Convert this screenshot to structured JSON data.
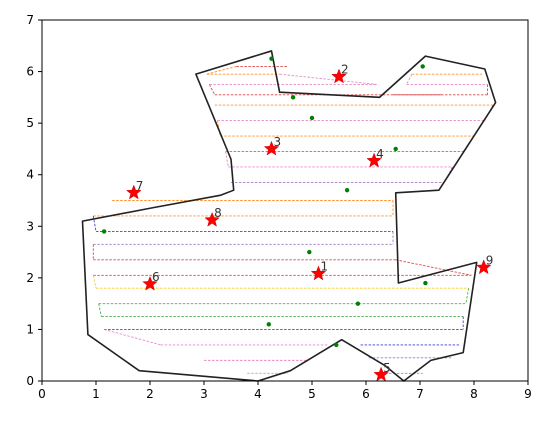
{
  "chart_data": {
    "type": "scatter",
    "title": "",
    "xlabel": "",
    "ylabel": "",
    "xlim": [
      0,
      9
    ],
    "ylim": [
      0,
      7
    ],
    "xticks": [
      "0",
      "1",
      "2",
      "3",
      "4",
      "5",
      "6",
      "7",
      "8",
      "9"
    ],
    "yticks": [
      "0",
      "1",
      "2",
      "3",
      "4",
      "5",
      "6",
      "7"
    ],
    "grid": false,
    "boundary": [
      [
        0.75,
        3.1
      ],
      [
        2.0,
        3.35
      ],
      [
        3.3,
        3.6
      ],
      [
        3.55,
        3.7
      ],
      [
        3.5,
        4.3
      ],
      [
        2.85,
        5.95
      ],
      [
        4.25,
        6.4
      ],
      [
        4.4,
        5.6
      ],
      [
        6.25,
        5.5
      ],
      [
        7.1,
        6.3
      ],
      [
        8.2,
        6.05
      ],
      [
        8.4,
        5.4
      ],
      [
        7.35,
        3.7
      ],
      [
        6.55,
        3.65
      ],
      [
        6.6,
        1.9
      ],
      [
        8.05,
        2.3
      ],
      [
        7.8,
        0.55
      ],
      [
        7.2,
        0.4
      ],
      [
        6.7,
        0.0
      ],
      [
        6.35,
        0.3
      ],
      [
        5.55,
        0.8
      ],
      [
        4.6,
        0.2
      ],
      [
        4.0,
        0.0
      ],
      [
        1.8,
        0.2
      ],
      [
        0.85,
        0.9
      ]
    ],
    "targets": [
      {
        "label": "1",
        "x": 5.12,
        "y": 2.08
      },
      {
        "label": "2",
        "x": 5.5,
        "y": 5.9
      },
      {
        "label": "3",
        "x": 4.25,
        "y": 4.5
      },
      {
        "label": "4",
        "x": 6.15,
        "y": 4.27
      },
      {
        "label": "5",
        "x": 6.28,
        "y": 0.12
      },
      {
        "label": "6",
        "x": 2.0,
        "y": 1.88
      },
      {
        "label": "7",
        "x": 1.7,
        "y": 3.65
      },
      {
        "label": "8",
        "x": 3.15,
        "y": 3.12
      },
      {
        "label": "9",
        "x": 8.18,
        "y": 2.2
      }
    ],
    "waypoints": [
      [
        4.25,
        6.25
      ],
      [
        4.65,
        5.5
      ],
      [
        5.0,
        5.1
      ],
      [
        6.55,
        4.5
      ],
      [
        5.65,
        3.7
      ],
      [
        1.15,
        2.9
      ],
      [
        4.95,
        2.5
      ],
      [
        7.1,
        1.9
      ],
      [
        5.85,
        1.5
      ],
      [
        4.2,
        1.1
      ],
      [
        5.45,
        0.7
      ],
      [
        7.05,
        6.1
      ]
    ],
    "sweep_rows": [
      {
        "y": 6.1,
        "x0": 3.6,
        "x1": 4.55,
        "color": "#d62728"
      },
      {
        "y": 5.95,
        "x0": 3.05,
        "x1": 4.4,
        "color": "#ff7f0e"
      },
      {
        "y": 5.75,
        "x0": 3.1,
        "x1": 6.2,
        "color": "#e377c2"
      },
      {
        "y": 5.55,
        "x0": 3.2,
        "x1": 7.4,
        "color": "#d62728"
      },
      {
        "y": 5.95,
        "x0": 6.85,
        "x1": 8.15,
        "color": "#ff7f0e"
      },
      {
        "y": 5.75,
        "x0": 6.75,
        "x1": 8.25,
        "color": "#e377c2"
      },
      {
        "y": 5.55,
        "x0": 6.5,
        "x1": 8.25,
        "color": "#d62728"
      },
      {
        "y": 5.35,
        "x0": 3.2,
        "x1": 8.35,
        "color": "#ff7f0e"
      },
      {
        "y": 5.05,
        "x0": 3.25,
        "x1": 8.2,
        "color": "#e377c2"
      },
      {
        "y": 4.75,
        "x0": 3.3,
        "x1": 8.0,
        "color": "#ff7f0e"
      },
      {
        "y": 4.45,
        "x0": 3.4,
        "x1": 7.8,
        "color": "#9467bd"
      },
      {
        "y": 4.15,
        "x0": 3.45,
        "x1": 7.6,
        "color": "#e377c2"
      },
      {
        "y": 3.85,
        "x0": 3.5,
        "x1": 7.45,
        "color": "#9467bd"
      },
      {
        "y": 3.5,
        "x0": 1.3,
        "x1": 6.5,
        "color": "#ff7f0e"
      },
      {
        "y": 3.2,
        "x0": 0.95,
        "x1": 6.5,
        "color": "#ff7f0e"
      },
      {
        "y": 2.9,
        "x0": 1.0,
        "x1": 6.5,
        "color": "#1f1fd0"
      },
      {
        "y": 2.65,
        "x0": 0.95,
        "x1": 6.5,
        "color": "#9467bd"
      },
      {
        "y": 2.35,
        "x0": 0.95,
        "x1": 6.55,
        "color": "#d62728"
      },
      {
        "y": 2.05,
        "x0": 0.95,
        "x1": 7.95,
        "color": "#d62728"
      },
      {
        "y": 1.8,
        "x0": 1.0,
        "x1": 7.9,
        "color": "#ffbf00"
      },
      {
        "y": 1.5,
        "x0": 1.05,
        "x1": 7.85,
        "color": "#2ca02c"
      },
      {
        "y": 1.25,
        "x0": 1.1,
        "x1": 7.8,
        "color": "#2ca02c"
      },
      {
        "y": 1.0,
        "x0": 1.15,
        "x1": 7.8,
        "color": "#1f1fd0"
      },
      {
        "y": 0.7,
        "x0": 2.2,
        "x1": 5.3,
        "color": "#e377c2"
      },
      {
        "y": 0.7,
        "x0": 5.9,
        "x1": 7.75,
        "color": "#1f1fd0"
      },
      {
        "y": 0.4,
        "x0": 3.0,
        "x1": 4.9,
        "color": "#e377c2"
      },
      {
        "y": 0.45,
        "x0": 6.05,
        "x1": 7.6,
        "color": "#9467bd"
      },
      {
        "y": 0.15,
        "x0": 3.8,
        "x1": 4.55,
        "color": "#e377c2"
      },
      {
        "y": 0.15,
        "x0": 6.35,
        "x1": 7.05,
        "color": "#9467bd"
      }
    ],
    "colors": {
      "boundary": "#222222",
      "target": "#ff0000",
      "waypoint": "#008000"
    }
  }
}
